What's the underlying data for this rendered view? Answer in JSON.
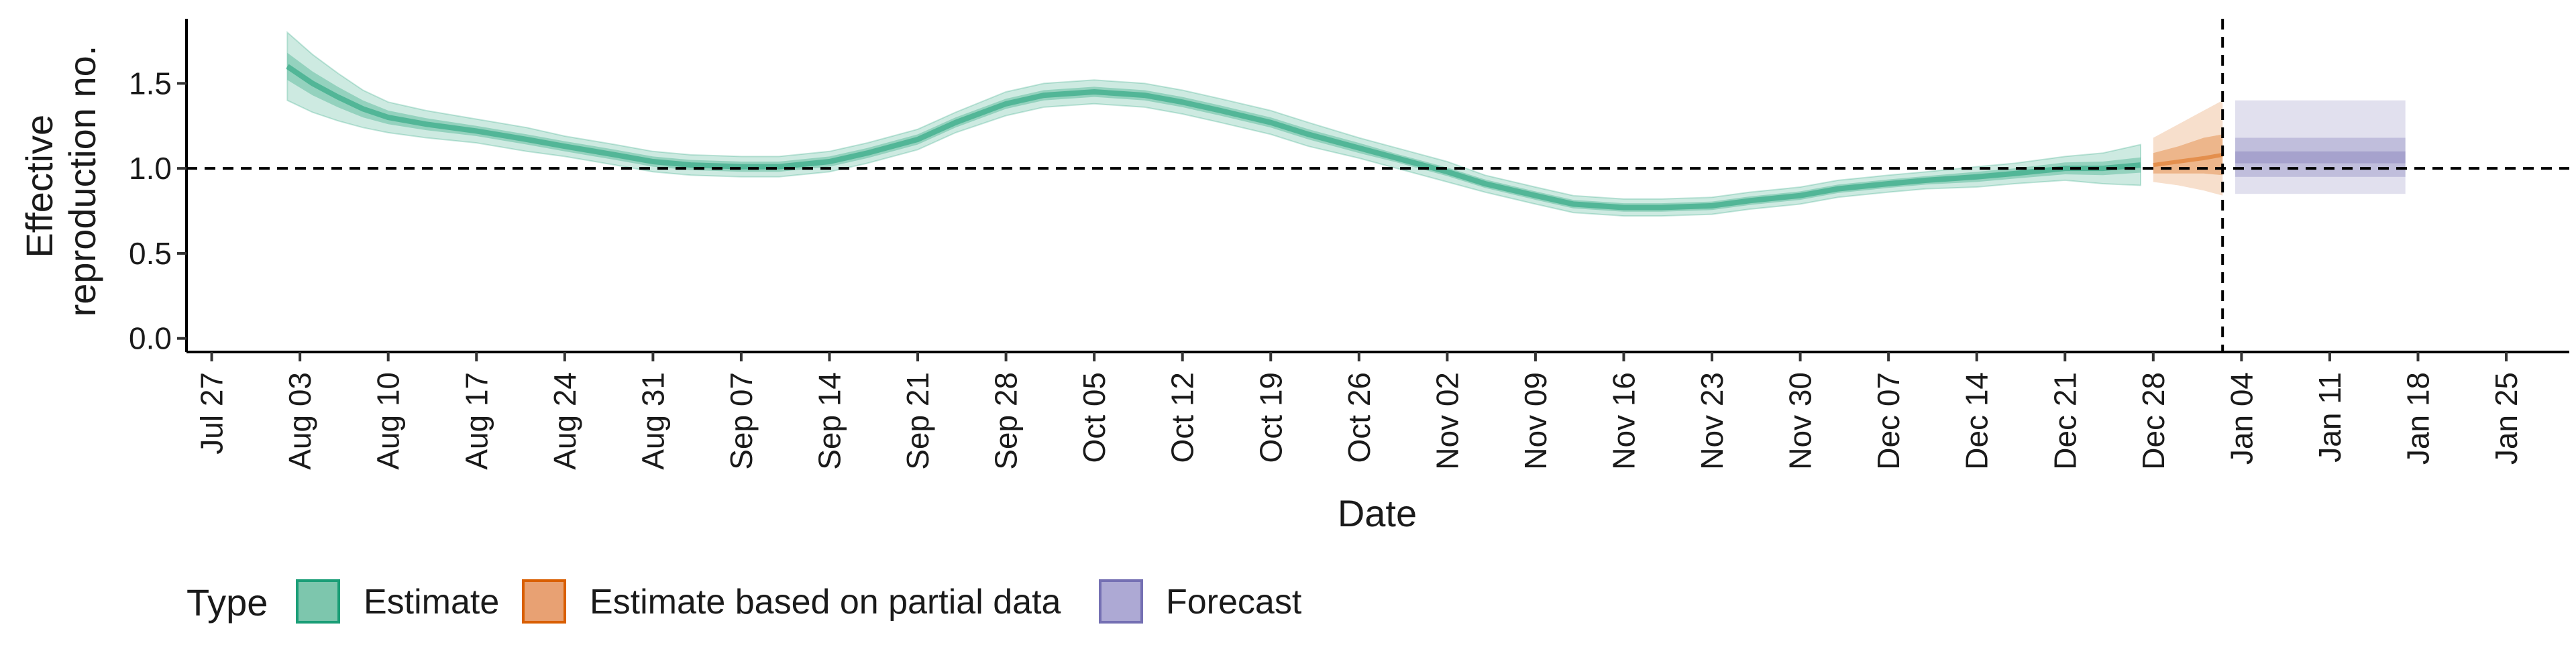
{
  "chart_data": {
    "type": "line",
    "xlabel": "Date",
    "ylabel_lines": [
      "Effective",
      "reproduction no."
    ],
    "x_ticks": [
      "Jul 27",
      "Aug 03",
      "Aug 10",
      "Aug 17",
      "Aug 24",
      "Aug 31",
      "Sep 07",
      "Sep 14",
      "Sep 21",
      "Sep 28",
      "Oct 05",
      "Oct 12",
      "Oct 19",
      "Oct 26",
      "Nov 02",
      "Nov 09",
      "Nov 16",
      "Nov 23",
      "Nov 30",
      "Dec 07",
      "Dec 14",
      "Dec 21",
      "Dec 28",
      "Jan 04",
      "Jan 11",
      "Jan 18",
      "Jan 25"
    ],
    "y_ticks": [
      "0.0",
      "0.5",
      "1.0",
      "1.5"
    ],
    "x_range_days": [
      -2,
      187
    ],
    "y_range": [
      -0.08,
      1.88
    ],
    "reference_line_y": 1.0,
    "forecast_date_day": 159.5,
    "legend": {
      "title": "Type",
      "entries": [
        {
          "label": "Estimate",
          "fill": "#7dc6ad",
          "stroke": "#1b9e77"
        },
        {
          "label": "Estimate based on partial data",
          "fill": "#e8a173",
          "stroke": "#d95f02"
        },
        {
          "label": "Forecast",
          "fill": "#ada9d4",
          "stroke": "#7570b3"
        }
      ]
    },
    "series": [
      {
        "name": "Estimate",
        "color": "#1b9e77",
        "x_days": [
          6,
          8,
          10,
          12,
          14,
          17,
          21,
          25,
          28,
          32,
          35,
          38,
          42,
          45,
          49,
          52,
          56,
          59,
          63,
          66,
          70,
          74,
          77,
          80,
          84,
          87,
          91,
          94,
          98,
          101,
          105,
          108,
          112,
          115,
          119,
          122,
          126,
          129,
          133,
          136,
          140,
          143,
          147,
          150,
          153
        ],
        "median": [
          1.6,
          1.5,
          1.42,
          1.35,
          1.3,
          1.26,
          1.22,
          1.17,
          1.13,
          1.08,
          1.04,
          1.02,
          1.01,
          1.01,
          1.04,
          1.09,
          1.17,
          1.27,
          1.38,
          1.43,
          1.45,
          1.43,
          1.39,
          1.34,
          1.27,
          1.2,
          1.12,
          1.06,
          0.98,
          0.91,
          0.84,
          0.79,
          0.77,
          0.77,
          0.78,
          0.81,
          0.84,
          0.88,
          0.91,
          0.93,
          0.95,
          0.97,
          1.0,
          1.0,
          1.02
        ],
        "band50_halfwidth": [
          0.08,
          0.07,
          0.06,
          0.05,
          0.04,
          0.035,
          0.03,
          0.03,
          0.03,
          0.03,
          0.03,
          0.03,
          0.03,
          0.03,
          0.03,
          0.03,
          0.03,
          0.03,
          0.03,
          0.03,
          0.03,
          0.03,
          0.03,
          0.03,
          0.03,
          0.03,
          0.03,
          0.025,
          0.025,
          0.025,
          0.025,
          0.025,
          0.025,
          0.025,
          0.025,
          0.025,
          0.025,
          0.025,
          0.025,
          0.025,
          0.03,
          0.03,
          0.035,
          0.04,
          0.045
        ],
        "band90_halfwidth": [
          0.2,
          0.17,
          0.14,
          0.11,
          0.09,
          0.08,
          0.07,
          0.07,
          0.06,
          0.06,
          0.06,
          0.06,
          0.06,
          0.06,
          0.06,
          0.06,
          0.06,
          0.06,
          0.07,
          0.07,
          0.07,
          0.07,
          0.07,
          0.07,
          0.07,
          0.07,
          0.06,
          0.06,
          0.06,
          0.05,
          0.05,
          0.05,
          0.05,
          0.05,
          0.05,
          0.05,
          0.05,
          0.05,
          0.05,
          0.05,
          0.06,
          0.06,
          0.07,
          0.09,
          0.12
        ]
      },
      {
        "name": "Estimate based on partial data",
        "color": "#d95f02",
        "x_days": [
          154,
          156,
          158,
          159.5
        ],
        "median": [
          1.02,
          1.04,
          1.06,
          1.08
        ],
        "band50_lower": [
          0.97,
          0.97,
          0.97,
          0.96
        ],
        "band50_upper": [
          1.09,
          1.13,
          1.18,
          1.2
        ],
        "band90_lower": [
          0.92,
          0.9,
          0.87,
          0.84
        ],
        "band90_upper": [
          1.18,
          1.26,
          1.34,
          1.4
        ]
      },
      {
        "name": "Forecast",
        "color": "#7570b3",
        "x_start_day": 160.5,
        "x_end_day": 174,
        "band90": [
          0.85,
          1.4
        ],
        "band50": [
          0.95,
          1.18
        ],
        "band20": [
          1.03,
          1.1
        ]
      }
    ]
  }
}
